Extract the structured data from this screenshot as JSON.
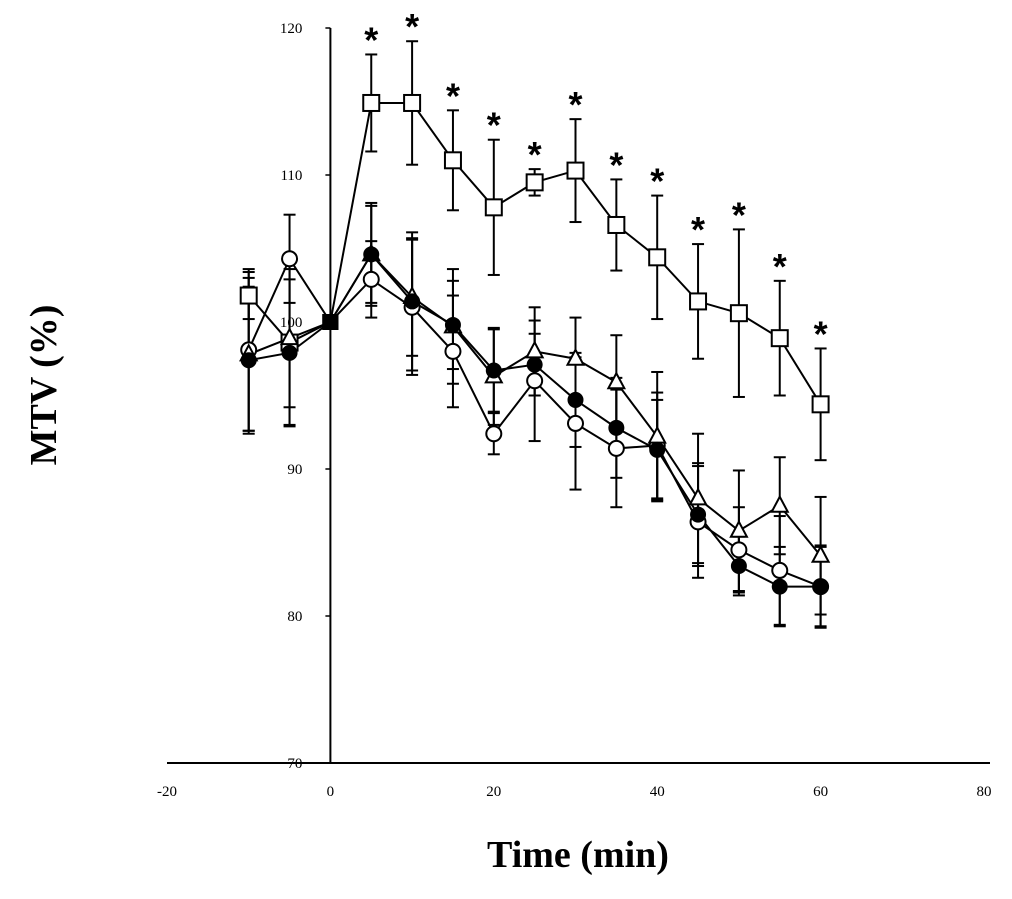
{
  "chart_data": {
    "type": "line",
    "title": "",
    "xlabel": "Time (min)",
    "ylabel": "MTV (%)",
    "xlim": [
      -20,
      80
    ],
    "ylim": [
      70,
      120
    ],
    "xticks": [
      -20,
      0,
      20,
      40,
      60,
      80
    ],
    "yticks": [
      70,
      80,
      90,
      100,
      110,
      120
    ],
    "grid": false,
    "legend": "none",
    "x": [
      -10,
      -5,
      0,
      5,
      10,
      15,
      20,
      25,
      30,
      35,
      40,
      45,
      50,
      55,
      60
    ],
    "series": [
      {
        "name": "open-square",
        "marker": "square-open",
        "values": [
          101.8,
          98.6,
          100,
          114.9,
          114.9,
          111.0,
          107.8,
          109.5,
          110.3,
          106.6,
          104.4,
          101.4,
          100.6,
          98.9,
          94.4
        ],
        "errors": [
          1.6,
          5.6,
          0,
          3.3,
          4.2,
          3.4,
          4.6,
          0.9,
          3.5,
          3.1,
          4.2,
          3.9,
          5.7,
          3.9,
          3.8
        ]
      },
      {
        "name": "open-circle",
        "marker": "circle-open",
        "values": [
          98.1,
          104.3,
          100,
          102.9,
          101.0,
          98.0,
          92.4,
          96.0,
          93.1,
          91.4,
          91.6,
          86.4,
          84.5,
          83.1,
          82.0
        ],
        "errors": [
          5.5,
          3.0,
          0,
          2.6,
          4.6,
          3.8,
          1.4,
          4.1,
          4.5,
          4.0,
          3.6,
          3.8,
          2.9,
          3.7,
          2.8
        ]
      },
      {
        "name": "open-triangle",
        "marker": "triangle-open",
        "values": [
          97.8,
          98.9,
          100,
          104.6,
          101.7,
          99.7,
          96.3,
          98.0,
          97.5,
          95.9,
          92.2,
          88.0,
          85.8,
          87.5,
          84.1
        ],
        "errors": [
          5.2,
          4.7,
          0,
          3.5,
          4.0,
          3.9,
          3.3,
          3.0,
          2.8,
          3.2,
          4.4,
          4.4,
          4.1,
          3.3,
          4.0
        ]
      },
      {
        "name": "filled-circle",
        "marker": "circle-filled",
        "values": [
          97.4,
          97.9,
          100,
          104.6,
          101.4,
          99.8,
          96.7,
          97.1,
          94.7,
          92.8,
          91.3,
          86.9,
          83.4,
          82.0,
          82.0
        ],
        "errors": [
          5.0,
          5.0,
          0,
          3.3,
          4.7,
          3.0,
          2.8,
          2.1,
          3.2,
          3.4,
          3.4,
          3.5,
          2.0,
          2.7,
          2.7
        ]
      }
    ],
    "annotations": {
      "symbol": "*",
      "series": "open-square",
      "x": [
        5,
        10,
        15,
        20,
        25,
        30,
        35,
        40,
        45,
        50,
        55,
        60
      ]
    }
  }
}
